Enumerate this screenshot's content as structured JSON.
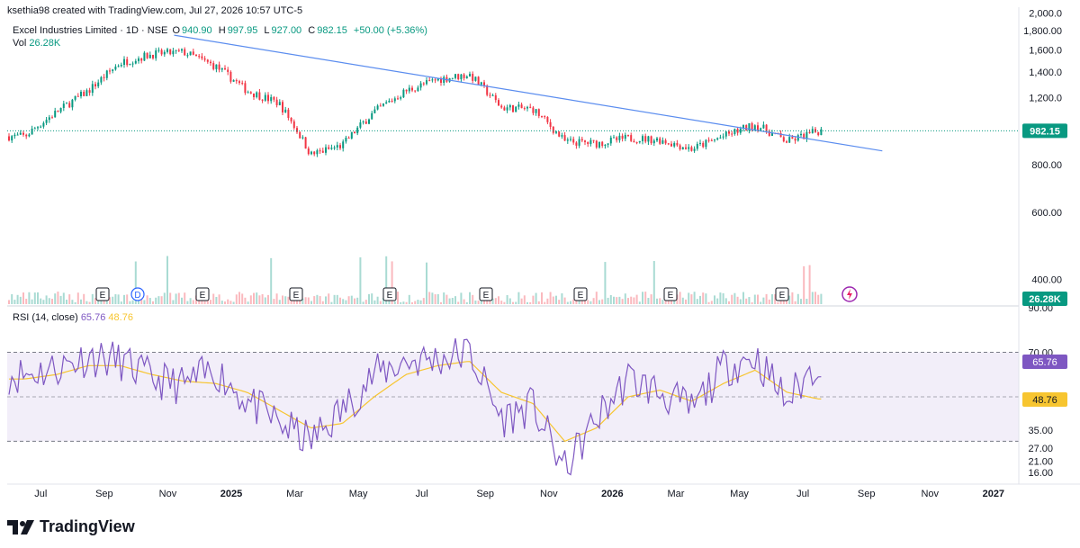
{
  "header": {
    "credit": "ksethia98 created with TradingView.com, Jul 27, 2026 10:57 UTC-5"
  },
  "legend": {
    "symbol": "Excel Industries Limited · 1D · NSE",
    "o_label": "O",
    "o": "940.90",
    "h_label": "H",
    "h": "997.95",
    "l_label": "L",
    "l": "927.00",
    "c_label": "C",
    "c": "982.15",
    "change": "+50.00 (+5.36%)",
    "vol_label": "Vol",
    "vol": "26.28K"
  },
  "rsi_legend": {
    "label": "RSI (14, close)",
    "rsi": "65.76",
    "ma": "48.76"
  },
  "price_axis": {
    "ticks": [
      "2,000.0",
      "1,800.00",
      "1,600.0",
      "1,400.0",
      "1,200.0",
      "800.00",
      "600.00",
      "400.00"
    ],
    "last_price": "982.15",
    "vol_badge": "26.28K"
  },
  "rsi_axis": {
    "ticks": [
      "90.00",
      "70.00",
      "35.00",
      "27.00",
      "21.00",
      "16.00"
    ],
    "rsi_badge": "65.76",
    "ma_badge": "48.76"
  },
  "time_axis": {
    "labels": [
      "Jul",
      "Sep",
      "Nov",
      "2025",
      "Mar",
      "May",
      "Jul",
      "Sep",
      "Nov",
      "2026",
      "Mar",
      "May",
      "Jul",
      "Sep",
      "Nov",
      "2027"
    ]
  },
  "event_markers": {
    "labels": [
      "E",
      "D",
      "E",
      "E",
      "E",
      "E",
      "E",
      "E",
      "E"
    ]
  },
  "colors": {
    "up": "#089981",
    "down": "#f23645",
    "trendline": "#5b8def",
    "rsi_line": "#7e57c2",
    "rsi_ma": "#f7c530",
    "rsi_band": "#7e57c2",
    "price_line": "#089981"
  },
  "brand": {
    "name": "TradingView",
    "logo_icon": "tradingview-logo-icon"
  },
  "chart_data": {
    "type": "line",
    "title": "Excel Industries Limited · 1D · NSE",
    "price_scale": "log",
    "price_ylim": [
      360,
      2050
    ],
    "rsi_ylim": [
      14,
      90
    ],
    "x": [
      "2024-06",
      "2024-07",
      "2024-08",
      "2024-09",
      "2024-10",
      "2024-11",
      "2024-12",
      "2025-01",
      "2025-02",
      "2025-03",
      "2025-04",
      "2025-05",
      "2025-06",
      "2025-07",
      "2025-08",
      "2025-09",
      "2025-10",
      "2025-11",
      "2025-12",
      "2026-01",
      "2026-02",
      "2026-03",
      "2026-04",
      "2026-05",
      "2026-06",
      "2026-07"
    ],
    "series": [
      {
        "values": [
          950,
          1100,
          1250,
          1480,
          1560,
          1580,
          1450,
          1250,
          1160,
          850,
          900,
          1100,
          1250,
          1340,
          1380,
          1130,
          1120,
          920,
          910,
          940,
          930,
          880,
          950,
          1020,
          920,
          982
        ]
      }
    ],
    "trendline": {
      "from": {
        "x": "2024-11",
        "y": 1750
      },
      "to": {
        "x": "2026-09",
        "y": 870
      }
    },
    "rsi": {
      "period": 14,
      "values": [
        60,
        63,
        68,
        66,
        58,
        55,
        62,
        48,
        38,
        30,
        44,
        60,
        66,
        67,
        70,
        40,
        46,
        17,
        40,
        58,
        52,
        44,
        63,
        68,
        48,
        66
      ],
      "ma_values": [
        58,
        60,
        64,
        64,
        60,
        57,
        56,
        52,
        44,
        36,
        38,
        50,
        60,
        64,
        66,
        52,
        47,
        30,
        36,
        50,
        53,
        48,
        56,
        62,
        52,
        49
      ],
      "bands": [
        30,
        70
      ]
    },
    "last": {
      "open": 940.9,
      "high": 997.95,
      "low": 927.0,
      "close": 982.15,
      "volume": "26.28K"
    }
  }
}
